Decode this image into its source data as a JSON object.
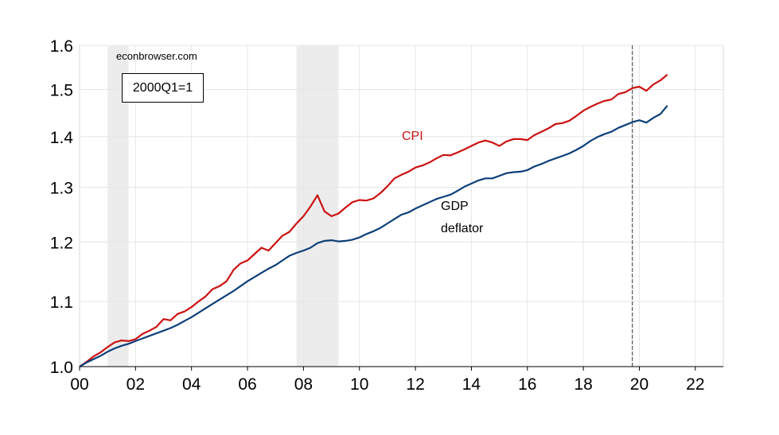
{
  "source_text": "econbrowser.com",
  "note_text": "2000Q1=1",
  "colors": {
    "cpi": "#cc1111",
    "gdp": "#0d3f7a",
    "shade": "#ececec",
    "grid": "#e6e6e6"
  },
  "chart_data": {
    "type": "line",
    "title": "",
    "xlabel": "",
    "ylabel": "",
    "y_scale": "log",
    "xlim": [
      2000.0,
      2023.0
    ],
    "ylim": [
      1.0,
      1.6
    ],
    "x_ticks": [
      2000,
      2002,
      2004,
      2006,
      2008,
      2010,
      2012,
      2014,
      2016,
      2018,
      2020,
      2022
    ],
    "x_tick_labels": [
      "00",
      "02",
      "04",
      "06",
      "08",
      "10",
      "12",
      "14",
      "16",
      "18",
      "20",
      "22"
    ],
    "y_ticks": [
      1.0,
      1.1,
      1.2,
      1.3,
      1.4,
      1.5,
      1.6
    ],
    "y_tick_labels": [
      "1.0",
      "1.1",
      "1.2",
      "1.3",
      "1.4",
      "1.5",
      "1.6"
    ],
    "grid": true,
    "recession_shading": [
      [
        2001.0,
        2001.75
      ],
      [
        2007.75,
        2009.25
      ]
    ],
    "vertical_line": {
      "x": 2019.75,
      "style": "dashed"
    },
    "series": [
      {
        "name": "CPI",
        "label_lines": [
          "CPI"
        ],
        "color": "#cc1111",
        "x": [
          2000.0,
          2000.25,
          2000.5,
          2000.75,
          2001.0,
          2001.25,
          2001.5,
          2001.75,
          2002.0,
          2002.25,
          2002.5,
          2002.75,
          2003.0,
          2003.25,
          2003.5,
          2003.75,
          2004.0,
          2004.25,
          2004.5,
          2004.75,
          2005.0,
          2005.25,
          2005.5,
          2005.75,
          2006.0,
          2006.25,
          2006.5,
          2006.75,
          2007.0,
          2007.25,
          2007.5,
          2007.75,
          2008.0,
          2008.25,
          2008.5,
          2008.75,
          2009.0,
          2009.25,
          2009.5,
          2009.75,
          2010.0,
          2010.25,
          2010.5,
          2010.75,
          2011.0,
          2011.25,
          2011.5,
          2011.75,
          2012.0,
          2012.25,
          2012.5,
          2012.75,
          2013.0,
          2013.25,
          2013.5,
          2013.75,
          2014.0,
          2014.25,
          2014.5,
          2014.75,
          2015.0,
          2015.25,
          2015.5,
          2015.75,
          2016.0,
          2016.25,
          2016.5,
          2016.75,
          2017.0,
          2017.25,
          2017.5,
          2017.75,
          2018.0,
          2018.25,
          2018.5,
          2018.75,
          2019.0,
          2019.25,
          2019.5,
          2019.75,
          2020.0,
          2020.25,
          2020.5,
          2020.75,
          2021.0
        ],
        "values": [
          1.0,
          1.007,
          1.015,
          1.021,
          1.029,
          1.036,
          1.039,
          1.038,
          1.041,
          1.049,
          1.054,
          1.06,
          1.072,
          1.07,
          1.08,
          1.084,
          1.091,
          1.1,
          1.108,
          1.12,
          1.125,
          1.133,
          1.152,
          1.163,
          1.168,
          1.179,
          1.19,
          1.185,
          1.198,
          1.211,
          1.218,
          1.233,
          1.246,
          1.264,
          1.285,
          1.255,
          1.246,
          1.251,
          1.262,
          1.272,
          1.276,
          1.275,
          1.279,
          1.289,
          1.302,
          1.317,
          1.324,
          1.33,
          1.338,
          1.342,
          1.348,
          1.356,
          1.363,
          1.362,
          1.368,
          1.374,
          1.381,
          1.388,
          1.392,
          1.388,
          1.381,
          1.39,
          1.395,
          1.395,
          1.393,
          1.403,
          1.41,
          1.417,
          1.426,
          1.428,
          1.433,
          1.443,
          1.454,
          1.462,
          1.469,
          1.475,
          1.478,
          1.49,
          1.494,
          1.503,
          1.506,
          1.497,
          1.511,
          1.52,
          1.533
        ]
      },
      {
        "name": "GDP deflator",
        "label_lines": [
          "GDP",
          "deflator"
        ],
        "color": "#0d3f7a",
        "x": [
          2000.0,
          2000.25,
          2000.5,
          2000.75,
          2001.0,
          2001.25,
          2001.5,
          2001.75,
          2002.0,
          2002.25,
          2002.5,
          2002.75,
          2003.0,
          2003.25,
          2003.5,
          2003.75,
          2004.0,
          2004.25,
          2004.5,
          2004.75,
          2005.0,
          2005.25,
          2005.5,
          2005.75,
          2006.0,
          2006.25,
          2006.5,
          2006.75,
          2007.0,
          2007.25,
          2007.5,
          2007.75,
          2008.0,
          2008.25,
          2008.5,
          2008.75,
          2009.0,
          2009.25,
          2009.5,
          2009.75,
          2010.0,
          2010.25,
          2010.5,
          2010.75,
          2011.0,
          2011.25,
          2011.5,
          2011.75,
          2012.0,
          2012.25,
          2012.5,
          2012.75,
          2013.0,
          2013.25,
          2013.5,
          2013.75,
          2014.0,
          2014.25,
          2014.5,
          2014.75,
          2015.0,
          2015.25,
          2015.5,
          2015.75,
          2016.0,
          2016.25,
          2016.5,
          2016.75,
          2017.0,
          2017.25,
          2017.5,
          2017.75,
          2018.0,
          2018.25,
          2018.5,
          2018.75,
          2019.0,
          2019.25,
          2019.5,
          2019.75,
          2020.0,
          2020.25,
          2020.5,
          2020.75,
          2021.0
        ],
        "values": [
          1.0,
          1.006,
          1.011,
          1.016,
          1.022,
          1.027,
          1.031,
          1.034,
          1.038,
          1.042,
          1.046,
          1.05,
          1.054,
          1.058,
          1.063,
          1.069,
          1.075,
          1.082,
          1.089,
          1.096,
          1.103,
          1.11,
          1.117,
          1.125,
          1.133,
          1.14,
          1.147,
          1.154,
          1.16,
          1.168,
          1.176,
          1.181,
          1.185,
          1.19,
          1.198,
          1.202,
          1.203,
          1.201,
          1.202,
          1.204,
          1.208,
          1.214,
          1.219,
          1.225,
          1.233,
          1.241,
          1.249,
          1.253,
          1.26,
          1.266,
          1.272,
          1.278,
          1.282,
          1.286,
          1.293,
          1.301,
          1.307,
          1.313,
          1.317,
          1.317,
          1.322,
          1.327,
          1.329,
          1.33,
          1.333,
          1.34,
          1.345,
          1.351,
          1.356,
          1.361,
          1.366,
          1.373,
          1.381,
          1.391,
          1.399,
          1.405,
          1.41,
          1.418,
          1.424,
          1.43,
          1.434,
          1.429,
          1.439,
          1.447,
          1.465
        ]
      }
    ]
  }
}
